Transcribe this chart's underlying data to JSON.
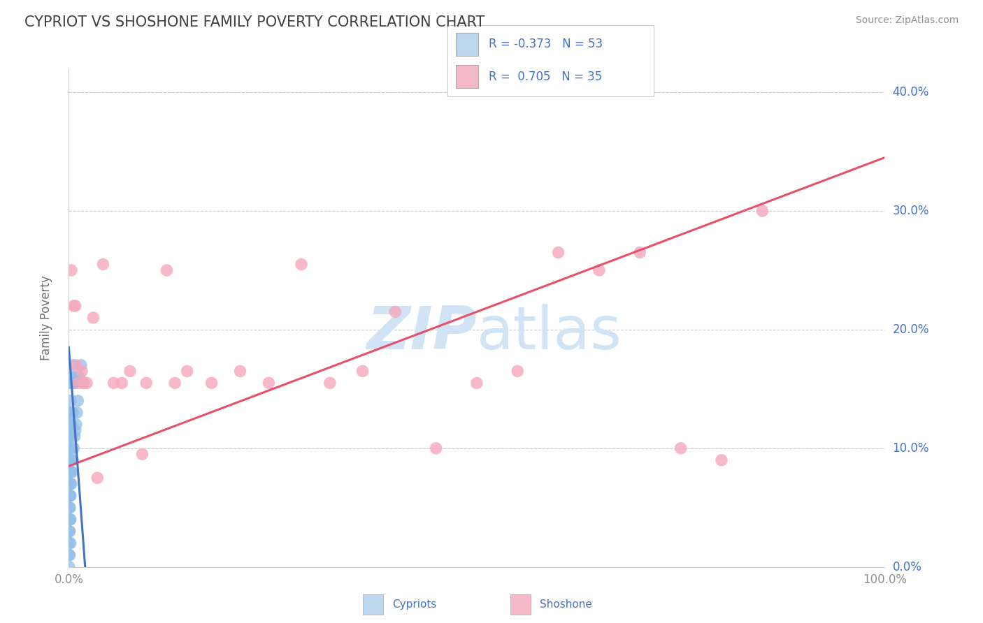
{
  "title": "CYPRIOT VS SHOSHONE FAMILY POVERTY CORRELATION CHART",
  "source_text": "Source: ZipAtlas.com",
  "ylabel": "Family Poverty",
  "xlim": [
    0,
    1.0
  ],
  "ylim": [
    0,
    0.42
  ],
  "xticks": [
    0.0,
    0.1,
    0.2,
    0.3,
    0.4,
    0.5,
    0.6,
    0.7,
    0.8,
    0.9,
    1.0
  ],
  "xtick_labels": [
    "0.0%",
    "",
    "",
    "",
    "",
    "",
    "",
    "",
    "",
    "",
    "100.0%"
  ],
  "yticks": [
    0.0,
    0.1,
    0.2,
    0.3,
    0.4
  ],
  "ytick_labels": [
    "0.0%",
    "10.0%",
    "20.0%",
    "30.0%",
    "40.0%"
  ],
  "cypriot_color": "#92BEE8",
  "shoshone_color": "#F5A8BC",
  "cypriot_line_color": "#4472C4",
  "shoshone_line_color": "#E8506A",
  "legend_cypriot_color": "#BDD7EE",
  "legend_shoshone_color": "#F4B8C8",
  "R_cypriot": -0.373,
  "N_cypriot": 53,
  "R_shoshone": 0.705,
  "N_shoshone": 35,
  "background_color": "#FFFFFF",
  "grid_color": "#CCCCCC",
  "title_color": "#404040",
  "axis_label_color": "#707070",
  "tick_color": "#909090",
  "legend_text_color": "#4472C4",
  "watermark_color": "#D0E4F5",
  "cypriot_points_x": [
    0.0005,
    0.0005,
    0.0005,
    0.0005,
    0.0005,
    0.0005,
    0.0008,
    0.0008,
    0.001,
    0.001,
    0.001,
    0.001,
    0.001,
    0.001,
    0.001,
    0.001,
    0.0012,
    0.0012,
    0.0015,
    0.0015,
    0.0015,
    0.0018,
    0.0018,
    0.002,
    0.002,
    0.002,
    0.002,
    0.002,
    0.002,
    0.0025,
    0.0025,
    0.003,
    0.003,
    0.003,
    0.003,
    0.004,
    0.004,
    0.004,
    0.005,
    0.005,
    0.005,
    0.006,
    0.006,
    0.007,
    0.007,
    0.008,
    0.008,
    0.009,
    0.01,
    0.011,
    0.013,
    0.015,
    0.018
  ],
  "cypriot_points_y": [
    0.0,
    0.01,
    0.02,
    0.04,
    0.06,
    0.08,
    0.03,
    0.07,
    0.01,
    0.03,
    0.05,
    0.07,
    0.09,
    0.11,
    0.13,
    0.155,
    0.05,
    0.1,
    0.04,
    0.07,
    0.12,
    0.06,
    0.1,
    0.02,
    0.04,
    0.06,
    0.08,
    0.1,
    0.13,
    0.08,
    0.14,
    0.07,
    0.09,
    0.12,
    0.16,
    0.08,
    0.11,
    0.155,
    0.09,
    0.13,
    0.17,
    0.1,
    0.155,
    0.11,
    0.155,
    0.115,
    0.16,
    0.12,
    0.13,
    0.14,
    0.16,
    0.17,
    0.155
  ],
  "shoshone_points_x": [
    0.003,
    0.006,
    0.009,
    0.012,
    0.016,
    0.022,
    0.03,
    0.042,
    0.055,
    0.075,
    0.095,
    0.12,
    0.145,
    0.175,
    0.21,
    0.245,
    0.285,
    0.32,
    0.36,
    0.4,
    0.45,
    0.5,
    0.55,
    0.6,
    0.65,
    0.7,
    0.75,
    0.8,
    0.85,
    0.008,
    0.018,
    0.035,
    0.065,
    0.09,
    0.13
  ],
  "shoshone_points_y": [
    0.25,
    0.22,
    0.17,
    0.155,
    0.165,
    0.155,
    0.21,
    0.255,
    0.155,
    0.165,
    0.155,
    0.25,
    0.165,
    0.155,
    0.165,
    0.155,
    0.255,
    0.155,
    0.165,
    0.215,
    0.1,
    0.155,
    0.165,
    0.265,
    0.25,
    0.265,
    0.1,
    0.09,
    0.3,
    0.22,
    0.155,
    0.075,
    0.155,
    0.095,
    0.155
  ],
  "shoshone_line_x0": 0.0,
  "shoshone_line_y0": 0.085,
  "shoshone_line_x1": 1.0,
  "shoshone_line_y1": 0.345
}
